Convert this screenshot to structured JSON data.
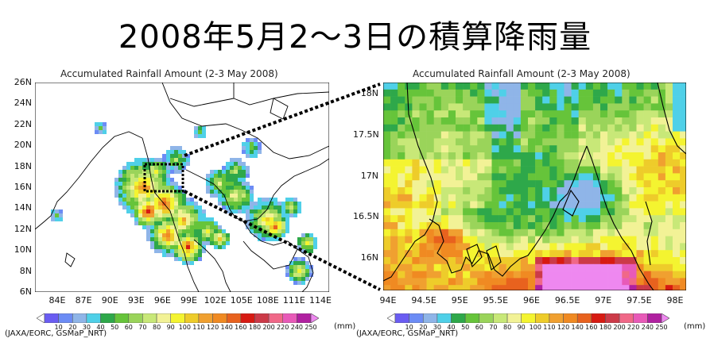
{
  "title": "2008年5月2～3日の積算降雨量",
  "colors": {
    "scale": [
      "#ffffff",
      "#6a5cf2",
      "#6c8cf5",
      "#8fb5e8",
      "#4fd0e8",
      "#2ea84a",
      "#66c43a",
      "#9ad45a",
      "#c8e878",
      "#f2f296",
      "#f4f430",
      "#eecc2a",
      "#f0a030",
      "#f08a22",
      "#e8621e",
      "#d71a12",
      "#cc3a48",
      "#f06888",
      "#e85ab8",
      "#b020a0",
      "#ee88f0"
    ]
  },
  "left_map": {
    "title": "Accumulated Rainfall Amount (2-3 May 2008)",
    "lat_ticks": [
      "26N",
      "24N",
      "22N",
      "20N",
      "18N",
      "16N",
      "14N",
      "12N",
      "10N",
      "8N",
      "6N"
    ],
    "lon_ticks": [
      "84E",
      "87E",
      "90E",
      "93E",
      "96E",
      "99E",
      "102E",
      "105E",
      "108E",
      "111E",
      "114E"
    ]
  },
  "right_map": {
    "title": "Accumulated Rainfall Amount (2-3 May 2008)",
    "lat_ticks": [
      "18N",
      "17.5N",
      "17N",
      "16.5N",
      "16N"
    ],
    "lon_ticks": [
      "94E",
      "94.5E",
      "95E",
      "95.5E",
      "96E",
      "96.5E",
      "97E",
      "97.5E",
      "98E"
    ]
  },
  "colorbar": {
    "labels": [
      "10",
      "20",
      "30",
      "40",
      "50",
      "60",
      "70",
      "80",
      "90",
      "100",
      "110",
      "120",
      "140",
      "160",
      "180",
      "200",
      "220",
      "240",
      "250"
    ],
    "unit": "(mm)",
    "credit": "(JAXA/EORC, GSMaP_NRT)"
  }
}
